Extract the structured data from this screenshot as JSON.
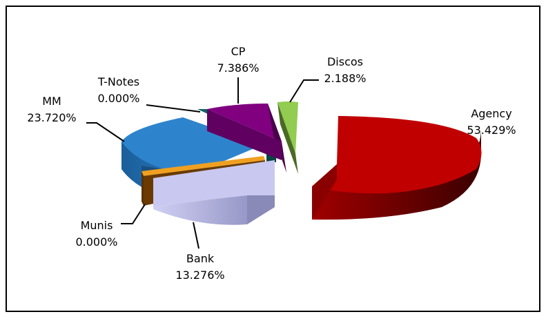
{
  "chart_data": {
    "type": "pie",
    "title": "",
    "style": "3d-exploded",
    "slices": [
      {
        "name": "Agency",
        "value": 53.429,
        "label": "53.429%",
        "color": "#c00000"
      },
      {
        "name": "Bank",
        "value": 13.276,
        "label": "13.276%",
        "color": "#c8c8f0"
      },
      {
        "name": "Munis",
        "value": 0.0,
        "label": "0.000%",
        "color": "#ffa020"
      },
      {
        "name": "MM",
        "value": 23.72,
        "label": "23.720%",
        "color": "#2a7bc0"
      },
      {
        "name": "T-Notes",
        "value": 0.0,
        "label": "0.000%",
        "color": "#0c6464"
      },
      {
        "name": "CP",
        "value": 7.386,
        "label": "7.386%",
        "color": "#800080"
      },
      {
        "name": "Discos",
        "value": 2.188,
        "label": "2.188%",
        "color": "#90c850"
      }
    ]
  }
}
